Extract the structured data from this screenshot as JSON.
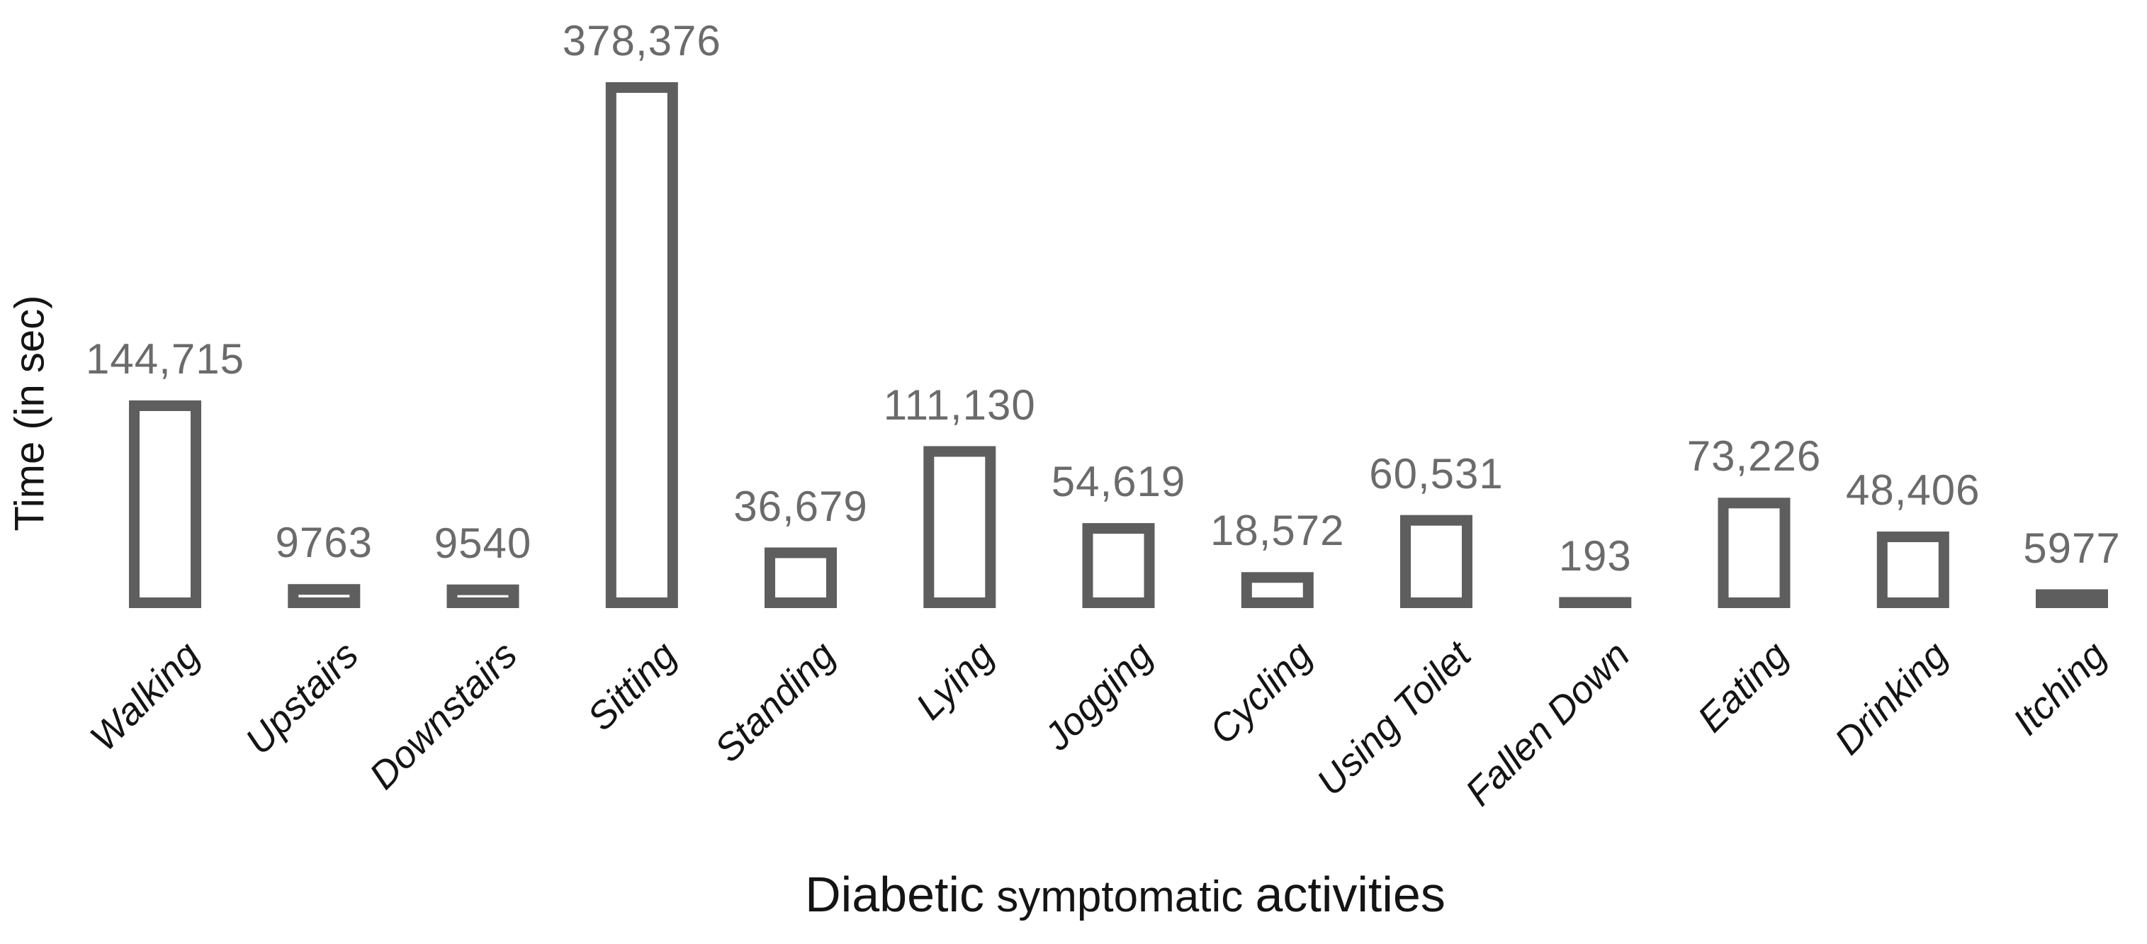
{
  "chart_data": {
    "type": "bar",
    "title": "",
    "xlabel": {
      "part1": "Diabetic",
      "part2": " symptomatic ",
      "part3": "activities"
    },
    "ylabel": "Time (in sec)",
    "categories": [
      "Walking",
      "Upstairs",
      "Downstairs",
      "Sitting",
      "Standing",
      "Lying",
      "Jogging",
      "Cycling",
      "Using Toilet",
      "Fallen Down",
      "Eating",
      "Drinking",
      "Itching"
    ],
    "values": [
      144715,
      9763,
      9540,
      378376,
      36679,
      111130,
      54619,
      18572,
      60531,
      193,
      73226,
      48406,
      5977
    ],
    "value_labels": [
      "144,715",
      "9763",
      "9540",
      "378,376",
      "36,679",
      "111,130",
      "54,619",
      "18,572",
      "60,531",
      "193",
      "73,226",
      "48,406",
      "5977"
    ],
    "series_name": "Time (in sec)",
    "layout": {
      "bar_style": "outlined-hollow",
      "gridlines": "off",
      "y_axis_ticks": "none",
      "x_axis_line": "none",
      "category_label_rotation_deg": 45,
      "data_labels": "above bars"
    },
    "colors": {
      "bar_outline": "#5e5e5e",
      "bar_fill": "#ffffff",
      "value_label": "#6b6b6b",
      "axis_text": "#141414",
      "background": "#ffffff"
    }
  }
}
